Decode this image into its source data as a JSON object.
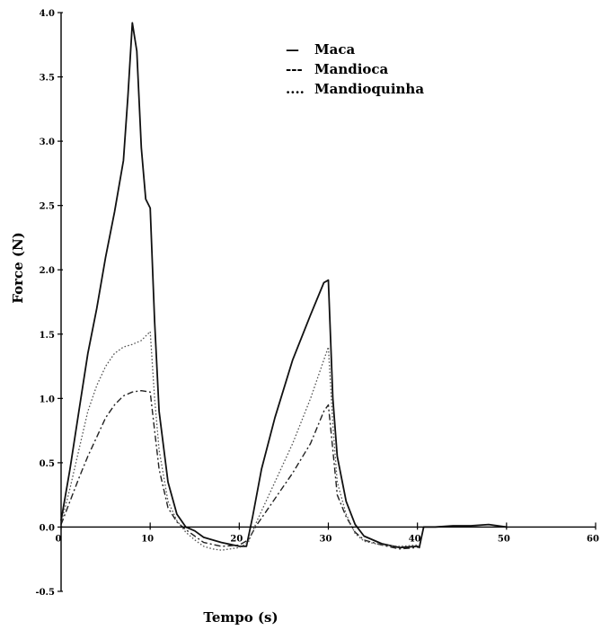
{
  "chart_data": {
    "type": "line",
    "title": "",
    "xlabel": "Tempo (s)",
    "ylabel": "Force (N)",
    "xlim": [
      0,
      60
    ],
    "ylim": [
      -0.5,
      4.0
    ],
    "x_ticks": [
      "0",
      "10",
      "20",
      "30",
      "40",
      "50",
      "60"
    ],
    "y_ticks": [
      "4.0",
      "3.5",
      "3.0",
      "2.5",
      "2.0",
      "1.5",
      "1.0",
      "0.5",
      "0.0",
      "-0.5"
    ],
    "grid": false,
    "legend_position": "top-right",
    "legend": [
      {
        "marker": "—",
        "name": "Maca"
      },
      {
        "marker": "---",
        "name": "Mandioca"
      },
      {
        "marker": "....",
        "name": "Mandioquinha"
      }
    ],
    "series": [
      {
        "name": "Maca",
        "style": "solid",
        "color": "#111111",
        "points": [
          [
            0,
            0.05
          ],
          [
            1,
            0.45
          ],
          [
            2,
            0.9
          ],
          [
            3,
            1.35
          ],
          [
            4,
            1.7
          ],
          [
            5,
            2.1
          ],
          [
            6,
            2.45
          ],
          [
            7,
            2.85
          ],
          [
            7.5,
            3.35
          ],
          [
            8,
            3.92
          ],
          [
            8.5,
            3.7
          ],
          [
            9,
            2.95
          ],
          [
            9.5,
            2.55
          ],
          [
            10,
            2.48
          ],
          [
            10.5,
            1.6
          ],
          [
            11,
            0.9
          ],
          [
            12,
            0.35
          ],
          [
            13,
            0.1
          ],
          [
            14,
            0.0
          ],
          [
            15,
            -0.03
          ],
          [
            16,
            -0.08
          ],
          [
            18,
            -0.12
          ],
          [
            20,
            -0.15
          ],
          [
            20.8,
            -0.15
          ],
          [
            21.5,
            0.08
          ],
          [
            22.5,
            0.45
          ],
          [
            24,
            0.85
          ],
          [
            26,
            1.3
          ],
          [
            28,
            1.65
          ],
          [
            29.5,
            1.9
          ],
          [
            30,
            1.92
          ],
          [
            30.5,
            1.0
          ],
          [
            31,
            0.55
          ],
          [
            32,
            0.2
          ],
          [
            33,
            0.02
          ],
          [
            34,
            -0.07
          ],
          [
            36,
            -0.13
          ],
          [
            38,
            -0.16
          ],
          [
            40,
            -0.15
          ],
          [
            40.2,
            -0.16
          ],
          [
            40.7,
            0.0
          ],
          [
            42,
            0.0
          ],
          [
            44,
            0.01
          ],
          [
            46,
            0.01
          ],
          [
            48,
            0.02
          ],
          [
            50,
            0.0
          ]
        ]
      },
      {
        "name": "Mandioca",
        "style": "dashed",
        "color": "#222222",
        "points": [
          [
            0,
            0.02
          ],
          [
            1,
            0.2
          ],
          [
            2,
            0.38
          ],
          [
            3,
            0.55
          ],
          [
            4,
            0.7
          ],
          [
            5,
            0.85
          ],
          [
            6,
            0.95
          ],
          [
            7,
            1.02
          ],
          [
            8,
            1.05
          ],
          [
            9,
            1.06
          ],
          [
            10,
            1.05
          ],
          [
            10.5,
            0.75
          ],
          [
            11,
            0.45
          ],
          [
            12,
            0.15
          ],
          [
            13,
            0.04
          ],
          [
            14,
            -0.02
          ],
          [
            15,
            -0.07
          ],
          [
            16,
            -0.12
          ],
          [
            18,
            -0.15
          ],
          [
            20,
            -0.14
          ],
          [
            21,
            -0.1
          ],
          [
            22,
            0.02
          ],
          [
            23,
            0.12
          ],
          [
            24,
            0.22
          ],
          [
            26,
            0.42
          ],
          [
            28,
            0.65
          ],
          [
            29.5,
            0.9
          ],
          [
            30,
            0.95
          ],
          [
            30.5,
            0.6
          ],
          [
            31,
            0.25
          ],
          [
            32,
            0.08
          ],
          [
            33,
            -0.04
          ],
          [
            34,
            -0.1
          ],
          [
            36,
            -0.14
          ],
          [
            38,
            -0.17
          ],
          [
            40,
            -0.16
          ]
        ]
      },
      {
        "name": "Mandioquinha",
        "style": "dotted",
        "color": "#555555",
        "points": [
          [
            0,
            0.03
          ],
          [
            1,
            0.3
          ],
          [
            2,
            0.6
          ],
          [
            3,
            0.9
          ],
          [
            4,
            1.1
          ],
          [
            5,
            1.25
          ],
          [
            6,
            1.35
          ],
          [
            7,
            1.4
          ],
          [
            8,
            1.42
          ],
          [
            9,
            1.45
          ],
          [
            10,
            1.52
          ],
          [
            10.5,
            1.0
          ],
          [
            11,
            0.6
          ],
          [
            12,
            0.2
          ],
          [
            13,
            0.05
          ],
          [
            14,
            -0.04
          ],
          [
            15,
            -0.1
          ],
          [
            16,
            -0.15
          ],
          [
            17,
            -0.17
          ],
          [
            18,
            -0.18
          ],
          [
            20,
            -0.16
          ],
          [
            21,
            -0.12
          ],
          [
            22,
            0.05
          ],
          [
            23,
            0.2
          ],
          [
            24,
            0.35
          ],
          [
            26,
            0.65
          ],
          [
            28,
            1.0
          ],
          [
            29.5,
            1.3
          ],
          [
            30,
            1.4
          ],
          [
            30.5,
            0.8
          ],
          [
            31,
            0.35
          ],
          [
            32,
            0.1
          ],
          [
            33,
            -0.05
          ],
          [
            34,
            -0.11
          ],
          [
            36,
            -0.14
          ],
          [
            38,
            -0.15
          ],
          [
            40,
            -0.14
          ]
        ]
      }
    ]
  }
}
